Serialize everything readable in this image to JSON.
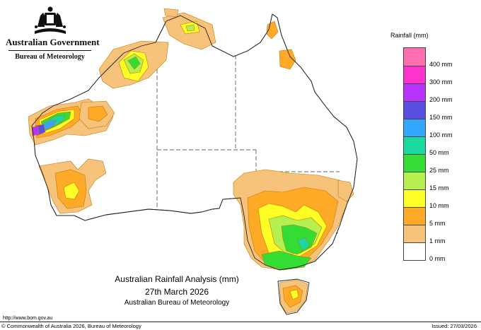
{
  "branding": {
    "government": "Australian Government",
    "bureau": "Bureau of Meteorology",
    "crest_icon": "coat-of-arms-icon"
  },
  "legend": {
    "title": "Rainfall (mm)",
    "levels": [
      {
        "label": "",
        "color": "#ff6fb0"
      },
      {
        "label": "400 mm",
        "color": "#ff33cc"
      },
      {
        "label": "300 mm",
        "color": "#b833ff"
      },
      {
        "label": "200 mm",
        "color": "#5a4ee0"
      },
      {
        "label": "150 mm",
        "color": "#33a6ff"
      },
      {
        "label": "100 mm",
        "color": "#19d99e"
      },
      {
        "label": "50 mm",
        "color": "#33dd33"
      },
      {
        "label": "25 mm",
        "color": "#b5f050"
      },
      {
        "label": "15 mm",
        "color": "#ffff26"
      },
      {
        "label": "10 mm",
        "color": "#ffaa26"
      },
      {
        "label": "5 mm",
        "color": "#f7c37a"
      },
      {
        "label": "1 mm",
        "color": "#ffffff"
      },
      {
        "label": "0 mm",
        "color": ""
      }
    ]
  },
  "caption": {
    "title": "Australian Rainfall Analysis (mm)",
    "date": "27th March 2026",
    "agency": "Australian Bureau of Meteorology"
  },
  "footer": {
    "url": "http://www.bom.gov.au",
    "copyright": "© Commonwealth of Australia 2026, Bureau of Meteorology",
    "issued": "Issued: 27/03/2026"
  },
  "colors": {
    "r1": "#f7c37a",
    "r5": "#ffaa26",
    "r10": "#ffff26",
    "r15": "#b5f050",
    "r25": "#33dd33",
    "r50": "#19d99e",
    "r100": "#33a6ff",
    "r150": "#5a4ee0",
    "r200": "#b833ff",
    "outline": "#222222"
  }
}
